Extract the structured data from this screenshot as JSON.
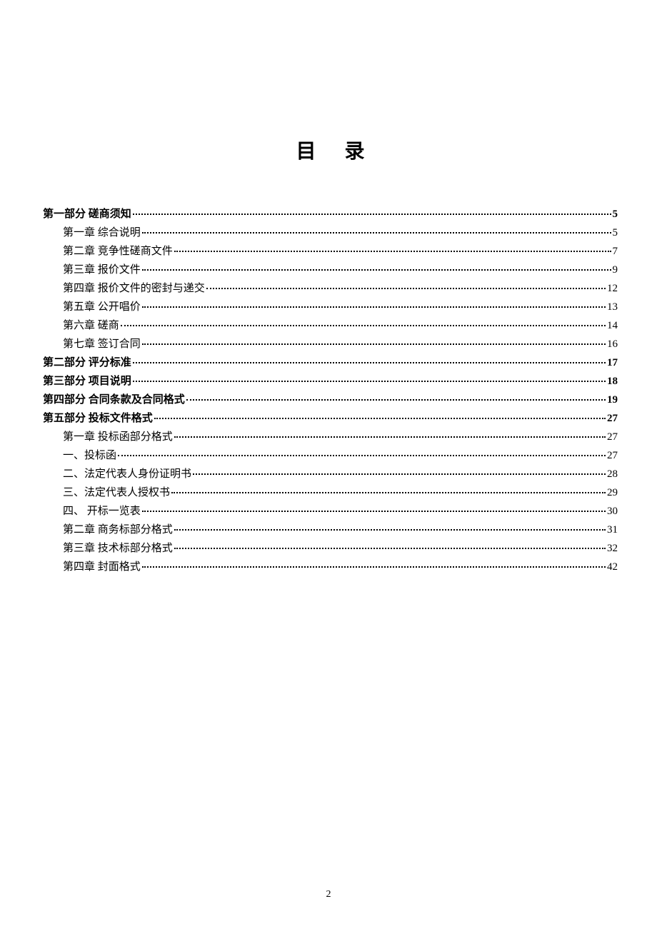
{
  "title": "目录",
  "pageNumber": "2",
  "toc": [
    {
      "level": 0,
      "label": "第一部分   磋商须知",
      "page": "5"
    },
    {
      "level": 1,
      "label": "第一章   综合说明",
      "page": "5"
    },
    {
      "level": 1,
      "label": "第二章   竞争性磋商文件",
      "page": "7"
    },
    {
      "level": 1,
      "label": "第三章   报价文件",
      "page": "9"
    },
    {
      "level": 1,
      "label": "第四章   报价文件的密封与递交",
      "page": "12"
    },
    {
      "level": 1,
      "label": "第五章   公开唱价",
      "page": "13"
    },
    {
      "level": 1,
      "label": "第六章   磋商",
      "page": "14"
    },
    {
      "level": 1,
      "label": "第七章   签订合同",
      "page": "16"
    },
    {
      "level": 0,
      "label": "第二部分   评分标准",
      "page": "17"
    },
    {
      "level": 0,
      "label": "第三部分   项目说明",
      "page": "18"
    },
    {
      "level": 0,
      "label": "第四部分   合同条款及合同格式",
      "page": "19"
    },
    {
      "level": 0,
      "label": "第五部分 投标文件格式",
      "page": "27"
    },
    {
      "level": 1,
      "label": "第一章 投标函部分格式",
      "page": "27"
    },
    {
      "level": 1,
      "label": "一、投标函",
      "page": "27"
    },
    {
      "level": 1,
      "label": "二、法定代表人身份证明书",
      "page": "28"
    },
    {
      "level": 1,
      "label": "三、法定代表人授权书",
      "page": "29"
    },
    {
      "level": 1,
      "label": "四、 开标一览表",
      "page": "30"
    },
    {
      "level": 1,
      "label": "第二章   商务标部分格式",
      "page": "31"
    },
    {
      "level": 1,
      "label": "第三章   技术标部分格式",
      "page": "32"
    },
    {
      "level": 1,
      "label": "第四章 封面格式",
      "page": "42"
    }
  ]
}
